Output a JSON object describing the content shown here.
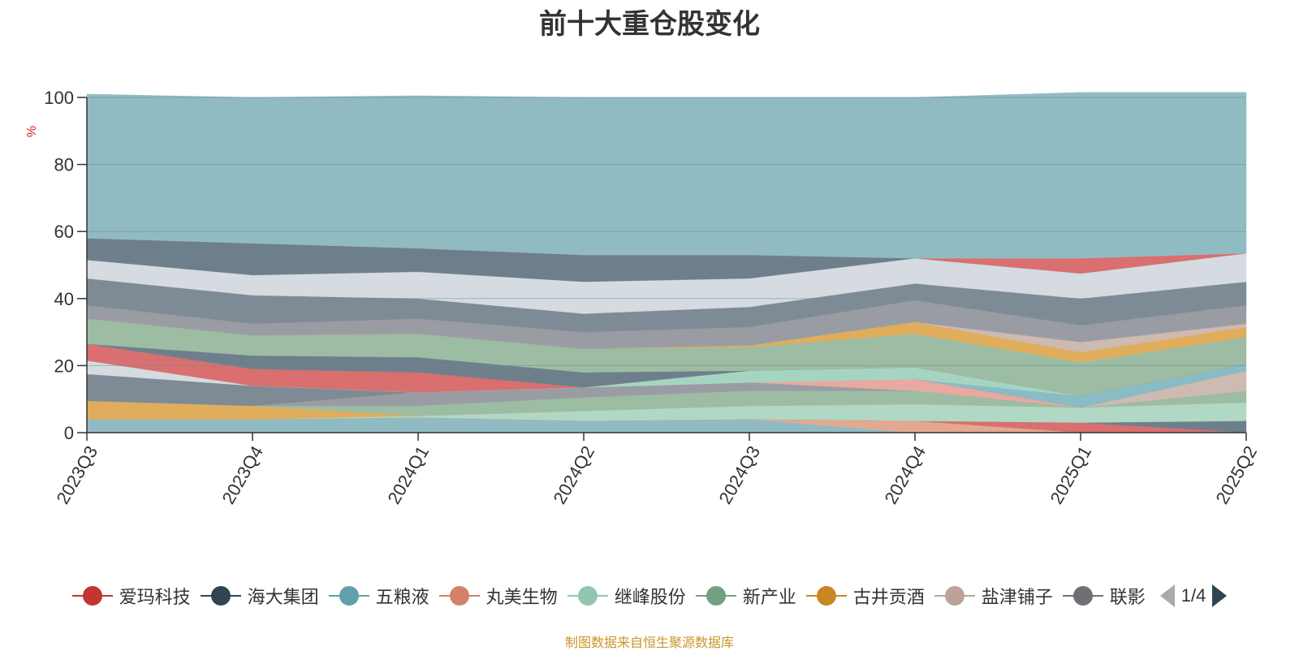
{
  "chart_data": {
    "type": "area",
    "title": "前十大重仓股变化",
    "ylabel": "%",
    "ylim": [
      0,
      100
    ],
    "yticks": [
      0,
      20,
      40,
      60,
      80,
      100
    ],
    "grid": true,
    "legend_position": "bottom",
    "categories": [
      "2023Q3",
      "2023Q4",
      "2024Q1",
      "2024Q2",
      "2024Q3",
      "2024Q4",
      "2025Q1",
      "2025Q2"
    ],
    "series": [
      {
        "name": "",
        "color": "#91bbc3",
        "values": [
          4,
          4,
          4.5,
          3.5,
          4,
          0,
          0,
          0
        ]
      },
      {
        "name": "",
        "color": "#e4a88f",
        "values": [
          0,
          0,
          0,
          0,
          0,
          3.5,
          0,
          0
        ]
      },
      {
        "name": "",
        "color": "#d96f6f",
        "values": [
          0,
          0,
          0,
          0,
          0,
          0,
          3,
          0
        ]
      },
      {
        "name": "",
        "color": "#6e7f8c",
        "values": [
          0,
          0,
          0,
          0,
          0,
          0,
          0,
          3.5
        ]
      },
      {
        "name": "",
        "color": "#b0d8c4",
        "values": [
          0,
          0,
          0.5,
          3,
          4,
          5,
          4.5,
          5.5
        ]
      },
      {
        "name": "",
        "color": "#e0ad5c",
        "values": [
          5.5,
          4,
          0,
          0,
          0,
          0,
          0,
          0
        ]
      },
      {
        "name": "",
        "color": "#9dbca4",
        "values": [
          0,
          0,
          3,
          4,
          4.5,
          4,
          0,
          3.5
        ]
      },
      {
        "name": "",
        "color": "#999da3",
        "values": [
          0,
          0,
          4,
          3,
          2.5,
          0,
          0,
          0
        ]
      },
      {
        "name": "",
        "color": "#e8a9a0",
        "values": [
          0,
          0,
          0,
          0,
          0,
          3.5,
          0,
          0
        ]
      },
      {
        "name": "",
        "color": "#cdbab1",
        "values": [
          0,
          0,
          0,
          0,
          0,
          0,
          0,
          6
        ]
      },
      {
        "name": "",
        "color": "#7f8b94",
        "values": [
          8,
          6,
          0,
          0,
          0,
          0,
          0,
          0
        ]
      },
      {
        "name": "",
        "color": "#89bcc5",
        "values": [
          0,
          0,
          0,
          0,
          0,
          0,
          3.5,
          2
        ]
      },
      {
        "name": "",
        "color": "#d5dbe1",
        "values": [
          4,
          0,
          0,
          0,
          0,
          0,
          0,
          0
        ]
      },
      {
        "name": "",
        "color": "#a5d5c0",
        "values": [
          0,
          0,
          0,
          0,
          3.5,
          3.5,
          0,
          0
        ]
      },
      {
        "name": "",
        "color": "#d96f6f",
        "values": [
          5,
          5,
          6,
          0,
          0,
          0,
          0,
          0
        ]
      },
      {
        "name": "",
        "color": "#6e7f8c",
        "values": [
          0,
          4,
          4.5,
          4.5,
          0,
          0,
          0,
          0
        ]
      },
      {
        "name": "",
        "color": "#9dbca4",
        "values": [
          7.5,
          6,
          7,
          7,
          7,
          10,
          10,
          8
        ]
      },
      {
        "name": "",
        "color": "#e0ad5c",
        "values": [
          0,
          0,
          0,
          0,
          0.5,
          3.5,
          3,
          3
        ]
      },
      {
        "name": "",
        "color": "#cdbab1",
        "values": [
          0,
          0,
          0,
          0,
          0,
          0,
          3,
          1
        ]
      },
      {
        "name": "",
        "color": "#999da3",
        "values": [
          4,
          3.5,
          4.5,
          5,
          5.5,
          6.5,
          5,
          5.5
        ]
      },
      {
        "name": "",
        "color": "#7f8b94",
        "values": [
          8,
          8.5,
          6,
          5.5,
          6,
          5,
          8,
          7
        ]
      },
      {
        "name": "",
        "color": "#d5dbe1",
        "values": [
          5.5,
          6,
          8,
          9.5,
          8.5,
          7.5,
          7.5,
          8.5
        ]
      },
      {
        "name": "",
        "color": "#6e7f8c",
        "values": [
          6.5,
          9.5,
          7,
          8,
          7,
          0,
          0,
          0
        ]
      },
      {
        "name": "",
        "color": "#d96f6f",
        "values": [
          0,
          0,
          0,
          0,
          0,
          0,
          4.5,
          0
        ]
      },
      {
        "name": "",
        "color": "#91bbc3",
        "values": [
          43,
          43.5,
          45.5,
          47,
          47,
          48,
          49.5,
          48
        ]
      }
    ]
  },
  "legend": {
    "items": [
      {
        "label": "爱玛科技",
        "color": "#c23531"
      },
      {
        "label": "海大集团",
        "color": "#2f4554"
      },
      {
        "label": "五粮液",
        "color": "#61a0a8"
      },
      {
        "label": "丸美生物",
        "color": "#d48265"
      },
      {
        "label": "继峰股份",
        "color": "#91c7ae"
      },
      {
        "label": "新产业",
        "color": "#749f83"
      },
      {
        "label": "古井贡酒",
        "color": "#ca8622"
      },
      {
        "label": "盐津铺子",
        "color": "#bda29a"
      },
      {
        "label": "联影",
        "color": "#6e7074"
      }
    ],
    "page_indicator": "1/4"
  },
  "source_text": "制图数据来自恒生聚源数据库"
}
